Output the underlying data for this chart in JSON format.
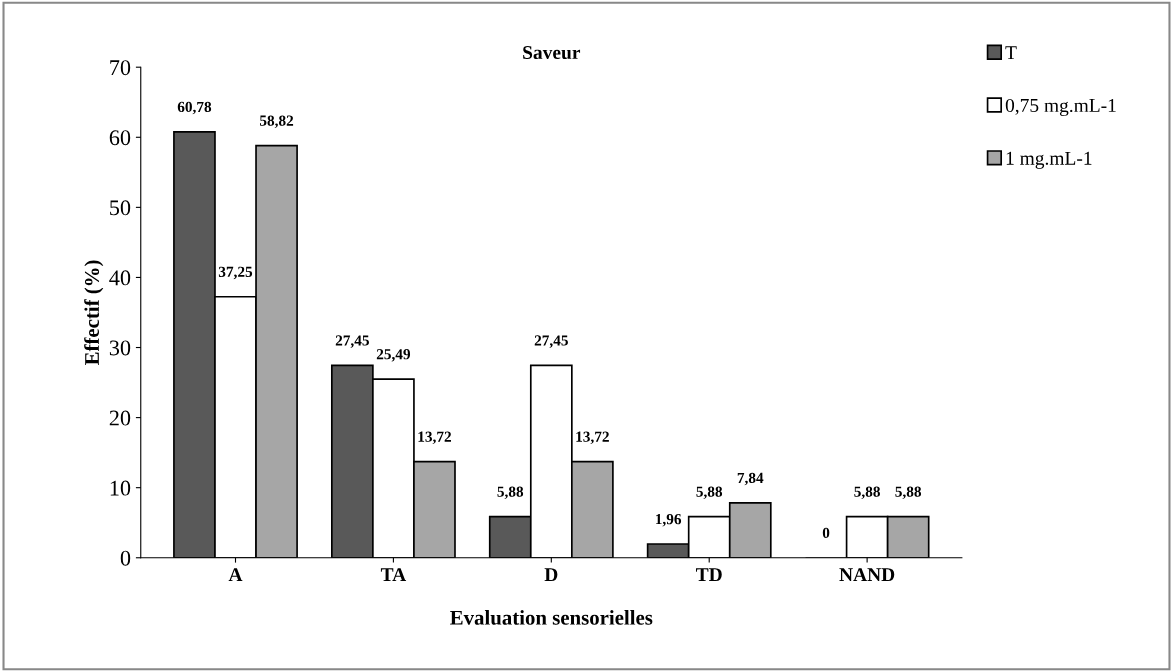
{
  "chart_data": {
    "type": "bar",
    "title": "Saveur",
    "xlabel": "Evaluation sensorielles",
    "ylabel": "Effectif (%)",
    "categories": [
      "A",
      "TA",
      "D",
      "TD",
      "NAND"
    ],
    "series": [
      {
        "name": "T",
        "color": "#595959",
        "values": [
          60.78,
          27.45,
          5.88,
          1.96,
          0
        ],
        "value_labels": [
          "60,78",
          "27,45",
          "5,88",
          "1,96",
          "0"
        ]
      },
      {
        "name": "0,75 mg.mL-1",
        "color": "#ffffff",
        "values": [
          37.25,
          25.49,
          27.45,
          5.88,
          5.88
        ],
        "value_labels": [
          "37,25",
          "25,49",
          "27,45",
          "5,88",
          "5,88"
        ]
      },
      {
        "name": "1 mg.mL-1",
        "color": "#a6a6a6",
        "values": [
          58.82,
          13.72,
          13.72,
          7.84,
          5.88
        ],
        "value_labels": [
          "58,82",
          "13,72",
          "13,72",
          "7,84",
          "5,88"
        ]
      }
    ],
    "ylim": [
      0,
      70
    ],
    "yticks": [
      0,
      10,
      20,
      30,
      40,
      50,
      60,
      70
    ],
    "grid": false,
    "legend": "top right"
  }
}
